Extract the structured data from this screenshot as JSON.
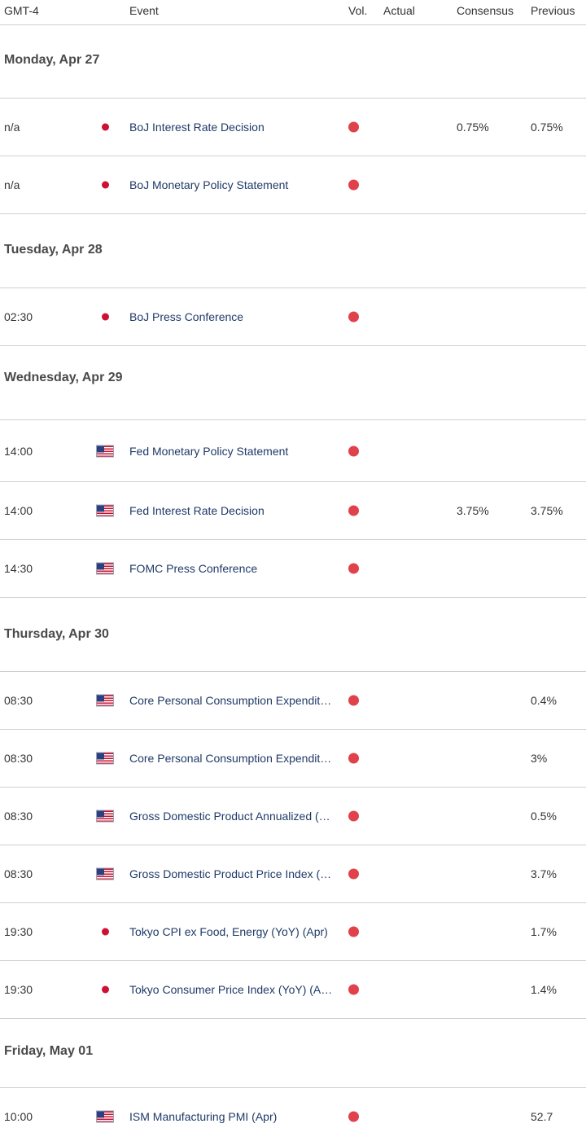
{
  "header": {
    "time_label": "GMT-4",
    "event_label": "Event",
    "vol_label": "Vol.",
    "actual_label": "Actual",
    "consensus_label": "Consensus",
    "previous_label": "Previous"
  },
  "colors": {
    "high_volatility": "#e0424b",
    "event_link": "#1f3a68",
    "divider": "#cfcfcf"
  },
  "rows": [
    {
      "kind": "day",
      "label": "Monday, Apr 27"
    },
    {
      "kind": "event",
      "time": "n/a",
      "country": "JP",
      "flag_icon": "japan-flag-icon",
      "event": "BoJ Interest Rate Decision",
      "volatility": "high",
      "actual": "",
      "consensus": "0.75%",
      "previous": "0.75%"
    },
    {
      "kind": "event",
      "time": "n/a",
      "country": "JP",
      "flag_icon": "japan-flag-icon",
      "event": "BoJ Monetary Policy Statement",
      "volatility": "high",
      "actual": "",
      "consensus": "",
      "previous": ""
    },
    {
      "kind": "day",
      "label": "Tuesday, Apr 28"
    },
    {
      "kind": "event",
      "time": "02:30",
      "country": "JP",
      "flag_icon": "japan-flag-icon",
      "event": "BoJ Press Conference",
      "volatility": "high",
      "actual": "",
      "consensus": "",
      "previous": ""
    },
    {
      "kind": "day",
      "label": "Wednesday, Apr 29"
    },
    {
      "kind": "event",
      "time": "14:00",
      "country": "US",
      "flag_icon": "us-flag-icon",
      "event": "Fed Monetary Policy Statement",
      "volatility": "high",
      "actual": "",
      "consensus": "",
      "previous": ""
    },
    {
      "kind": "event",
      "time": "14:00",
      "country": "US",
      "flag_icon": "us-flag-icon",
      "event": "Fed Interest Rate Decision",
      "volatility": "high",
      "actual": "",
      "consensus": "3.75%",
      "previous": "3.75%"
    },
    {
      "kind": "event",
      "time": "14:30",
      "country": "US",
      "flag_icon": "us-flag-icon",
      "event": "FOMC Press Conference",
      "volatility": "high",
      "actual": "",
      "consensus": "",
      "previous": ""
    },
    {
      "kind": "day",
      "label": "Thursday, Apr 30"
    },
    {
      "kind": "event",
      "time": "08:30",
      "country": "US",
      "flag_icon": "us-flag-icon",
      "event": "Core Personal Consumption Expendit…",
      "volatility": "high",
      "actual": "",
      "consensus": "",
      "previous": "0.4%"
    },
    {
      "kind": "event",
      "time": "08:30",
      "country": "US",
      "flag_icon": "us-flag-icon",
      "event": "Core Personal Consumption Expendit…",
      "volatility": "high",
      "actual": "",
      "consensus": "",
      "previous": "3%"
    },
    {
      "kind": "event",
      "time": "08:30",
      "country": "US",
      "flag_icon": "us-flag-icon",
      "event": "Gross Domestic Product Annualized (…",
      "volatility": "high",
      "actual": "",
      "consensus": "",
      "previous": "0.5%"
    },
    {
      "kind": "event",
      "time": "08:30",
      "country": "US",
      "flag_icon": "us-flag-icon",
      "event": "Gross Domestic Product Price Index (…",
      "volatility": "high",
      "actual": "",
      "consensus": "",
      "previous": "3.7%"
    },
    {
      "kind": "event",
      "time": "19:30",
      "country": "JP",
      "flag_icon": "japan-flag-icon",
      "event": "Tokyo CPI ex Food, Energy (YoY) (Apr)",
      "volatility": "high",
      "actual": "",
      "consensus": "",
      "previous": "1.7%"
    },
    {
      "kind": "event",
      "time": "19:30",
      "country": "JP",
      "flag_icon": "japan-flag-icon",
      "event": "Tokyo Consumer Price Index (YoY) (A…",
      "volatility": "high",
      "actual": "",
      "consensus": "",
      "previous": "1.4%"
    },
    {
      "kind": "day",
      "label": "Friday, May 01"
    },
    {
      "kind": "event",
      "time": "10:00",
      "country": "US",
      "flag_icon": "us-flag-icon",
      "event": "ISM Manufacturing PMI (Apr)",
      "volatility": "high",
      "actual": "",
      "consensus": "",
      "previous": "52.7"
    }
  ]
}
